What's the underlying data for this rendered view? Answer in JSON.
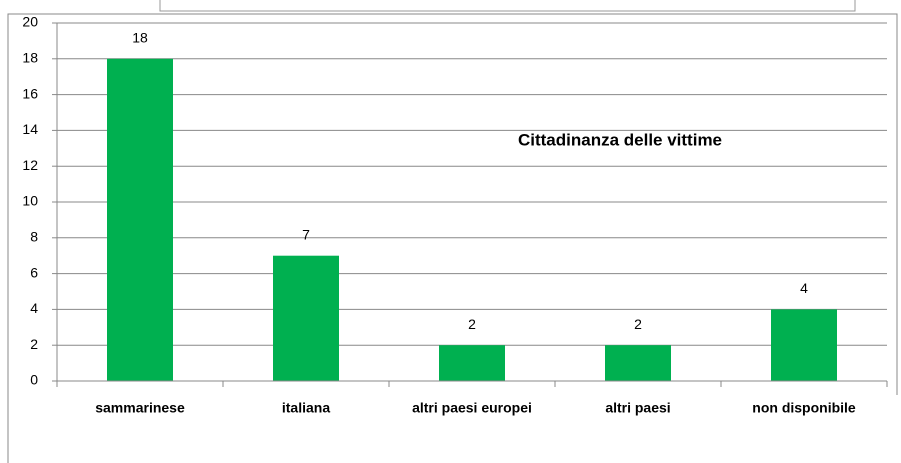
{
  "chart_data": {
    "type": "bar",
    "title": "Cittadinanza delle vittime",
    "categories": [
      "sammarinese",
      "italiana",
      "altri paesi europei",
      "altri paesi",
      "non disponibile"
    ],
    "values": [
      18,
      7,
      2,
      2,
      4
    ],
    "color": "#00b050",
    "ylim": [
      0,
      20
    ],
    "yticks": [
      0,
      2,
      4,
      6,
      8,
      10,
      12,
      14,
      16,
      18,
      20
    ],
    "grid": true
  }
}
